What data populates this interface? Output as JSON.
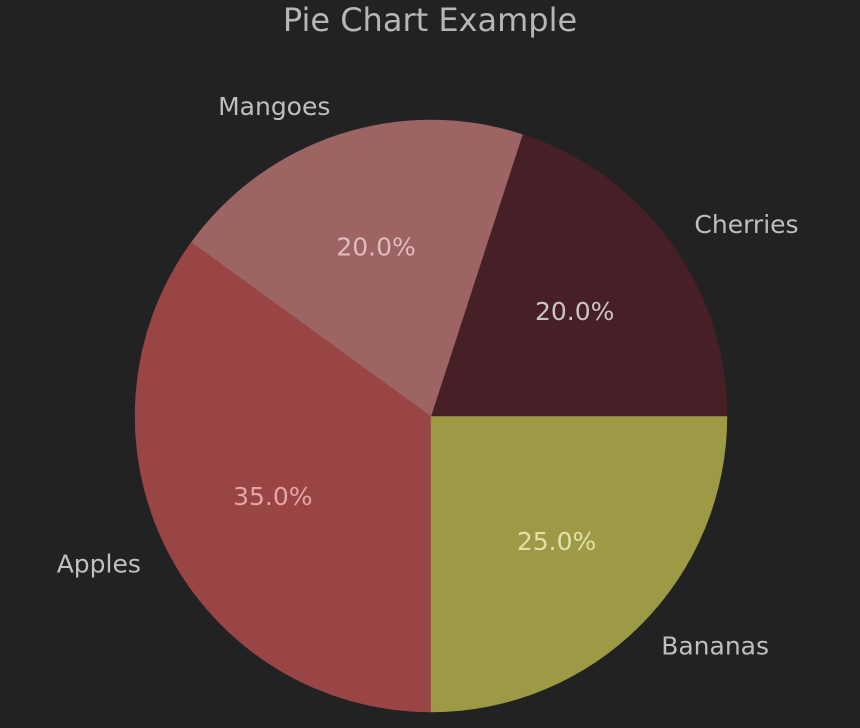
{
  "chart_data": {
    "type": "pie",
    "title": "Pie Chart Example",
    "categories": [
      "Apples",
      "Bananas",
      "Cherries",
      "Mangoes"
    ],
    "values": [
      35,
      25,
      20,
      20
    ],
    "value_labels": [
      "35.0%",
      "25.0%",
      "20.0%",
      "20.0%"
    ],
    "colors": [
      "#994545",
      "#9c9a45",
      "#471f26",
      "#9c6462"
    ],
    "label_colors": [
      "#e2a5a3",
      "#e2e0a6",
      "#c9c5c6",
      "#e2bcba"
    ],
    "start_angle_deg": 144,
    "direction": "counterclockwise",
    "legend": "none"
  }
}
